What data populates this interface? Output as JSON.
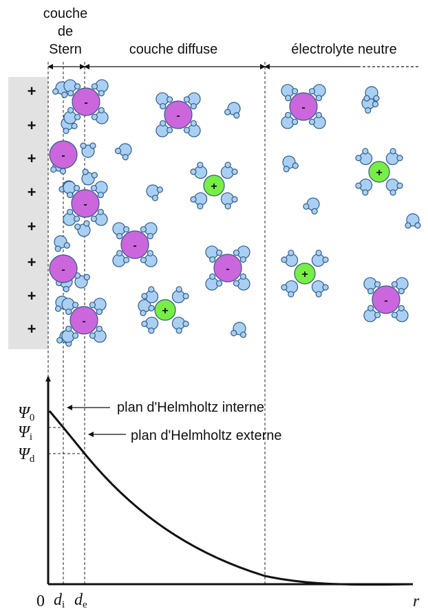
{
  "header": {
    "stern_line1": "couche",
    "stern_line2": "de",
    "stern_line3": "Stern",
    "diffuse": "couche diffuse",
    "neutral": "électrolyte neutre"
  },
  "electrode": {
    "charge_symbol": "+"
  },
  "ions": {
    "anion_symbol": "-",
    "cation_symbol": "+"
  },
  "annotations": {
    "inner_plane": "plan d'Helmholtz interne",
    "outer_plane": "plan d'Helmholtz externe"
  },
  "graph": {
    "psi_symbol": "Ψ",
    "psi0_sub": "0",
    "psii_sub": "i",
    "psid_sub": "d",
    "origin": "0",
    "d_symbol": "d",
    "di_sub": "i",
    "de_sub": "e",
    "r_label": "r"
  },
  "colors": {
    "water": "#a9d0f3",
    "water_stroke": "#2f5a88",
    "anion": "#cc66dd",
    "cation": "#77ee44",
    "electrode": "#e2e2e2"
  }
}
